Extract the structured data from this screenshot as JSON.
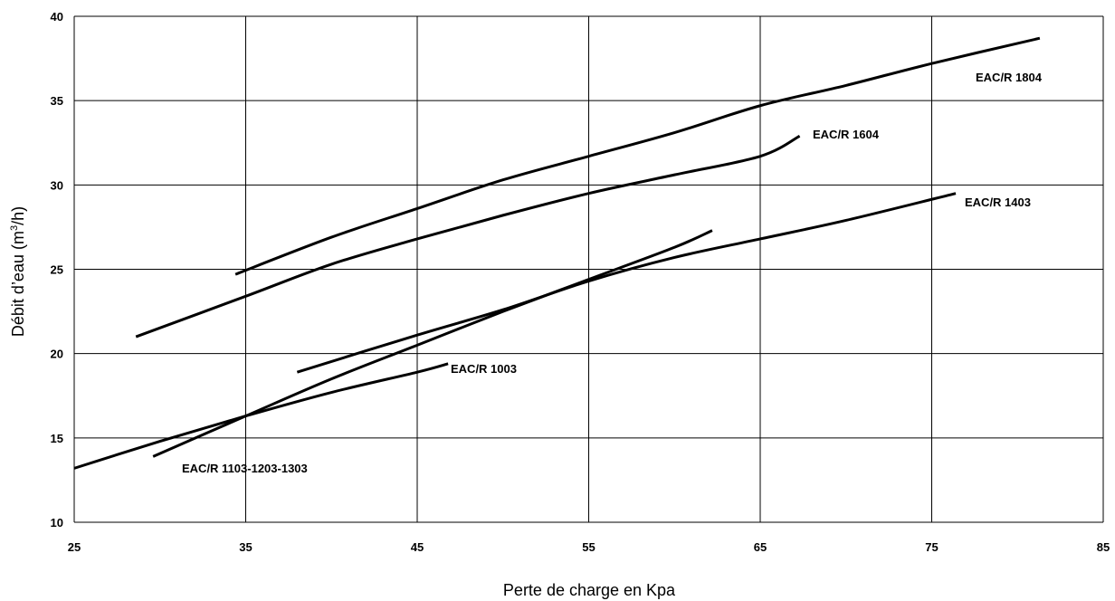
{
  "chart_data": {
    "type": "line",
    "xlabel": "Perte de charge en Kpa",
    "ylabel_prefix": "Débit d’eau (m",
    "ylabel_sup": "3",
    "ylabel_suffix": "/h)",
    "xlim": [
      25,
      85
    ],
    "ylim": [
      10,
      40
    ],
    "xticks": [
      25,
      35,
      45,
      55,
      65,
      75,
      85
    ],
    "yticks": [
      10,
      15,
      20,
      25,
      30,
      35,
      40
    ],
    "grid": true,
    "series": [
      {
        "name": "EAC/R 1003",
        "points": [
          [
            25,
            13.2
          ],
          [
            30,
            14.8
          ],
          [
            35,
            16.3
          ],
          [
            40,
            17.7
          ],
          [
            45,
            18.9
          ],
          [
            46.8,
            19.4
          ]
        ]
      },
      {
        "name": "EAC/R 1103-1203-1303",
        "points": [
          [
            29.6,
            13.9
          ],
          [
            35,
            16.3
          ],
          [
            40,
            18.5
          ],
          [
            45,
            20.5
          ],
          [
            50,
            22.5
          ],
          [
            55,
            24.4
          ],
          [
            60,
            26.3
          ],
          [
            62.2,
            27.3
          ]
        ]
      },
      {
        "name": "EAC/R 1403",
        "points": [
          [
            38,
            18.9
          ],
          [
            45,
            21.1
          ],
          [
            50,
            22.6
          ],
          [
            55,
            24.3
          ],
          [
            60,
            25.7
          ],
          [
            65,
            26.8
          ],
          [
            70,
            27.9
          ],
          [
            76.4,
            29.5
          ]
        ]
      },
      {
        "name": "EAC/R 1604",
        "points": [
          [
            28.6,
            21.0
          ],
          [
            35,
            23.4
          ],
          [
            40,
            25.3
          ],
          [
            45,
            26.8
          ],
          [
            50,
            28.2
          ],
          [
            55,
            29.5
          ],
          [
            60,
            30.6
          ],
          [
            65,
            31.7
          ],
          [
            67.3,
            32.9
          ]
        ]
      },
      {
        "name": "EAC/R 1804",
        "points": [
          [
            34.4,
            24.7
          ],
          [
            40,
            26.9
          ],
          [
            45,
            28.6
          ],
          [
            50,
            30.3
          ],
          [
            55,
            31.7
          ],
          [
            60,
            33.1
          ],
          [
            65,
            34.7
          ],
          [
            70,
            35.9
          ],
          [
            75,
            37.2
          ],
          [
            81.3,
            38.7
          ]
        ]
      }
    ]
  }
}
